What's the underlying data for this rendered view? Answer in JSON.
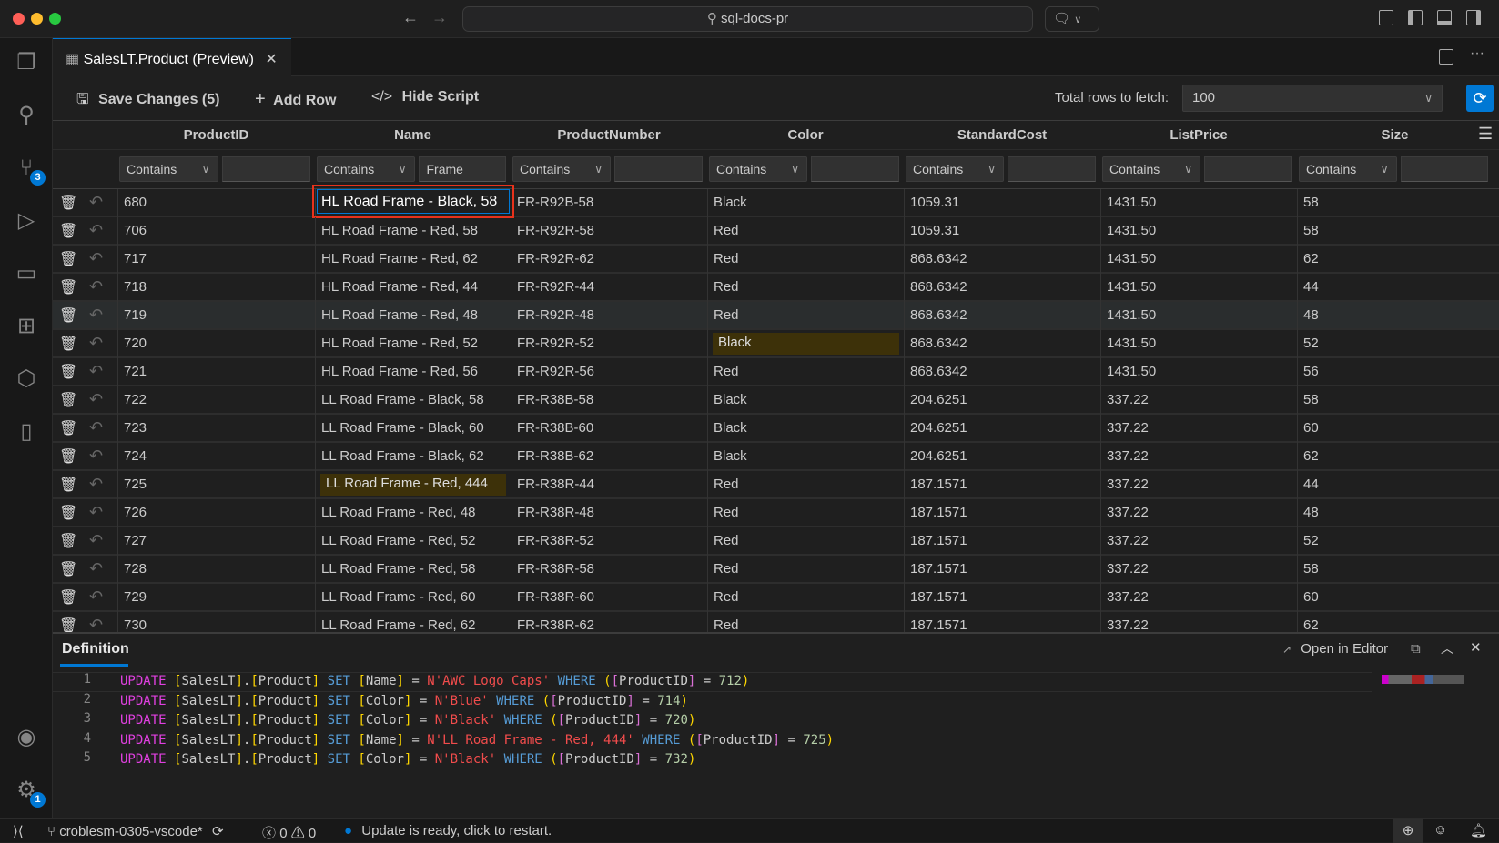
{
  "window": {
    "search_text": "sql-docs-pr"
  },
  "activity_bar": {
    "source_control_badge": "3",
    "settings_badge": "1"
  },
  "tab": {
    "label": "SalesLT.Product (Preview)"
  },
  "toolbar": {
    "save_label": "Save Changes (5)",
    "add_row_label": "Add Row",
    "hide_script_label": "Hide Script",
    "rows_label": "Total rows to fetch:",
    "rows_value": "100"
  },
  "columns": [
    "ProductID",
    "Name",
    "ProductNumber",
    "Color",
    "StandardCost",
    "ListPrice",
    "Size"
  ],
  "filters": [
    {
      "op": "Contains",
      "value": ""
    },
    {
      "op": "Contains",
      "value": "Frame"
    },
    {
      "op": "Contains",
      "value": ""
    },
    {
      "op": "Contains",
      "value": ""
    },
    {
      "op": "Contains",
      "value": ""
    },
    {
      "op": "Contains",
      "value": ""
    },
    {
      "op": "Contains",
      "value": ""
    }
  ],
  "rows": [
    [
      "680",
      "HL Road Frame - Black, 58",
      "FR-R92B-58",
      "Black",
      "1059.31",
      "1431.50",
      "58"
    ],
    [
      "706",
      "HL Road Frame - Red, 58",
      "FR-R92R-58",
      "Red",
      "1059.31",
      "1431.50",
      "58"
    ],
    [
      "717",
      "HL Road Frame - Red, 62",
      "FR-R92R-62",
      "Red",
      "868.6342",
      "1431.50",
      "62"
    ],
    [
      "718",
      "HL Road Frame - Red, 44",
      "FR-R92R-44",
      "Red",
      "868.6342",
      "1431.50",
      "44"
    ],
    [
      "719",
      "HL Road Frame - Red, 48",
      "FR-R92R-48",
      "Red",
      "868.6342",
      "1431.50",
      "48"
    ],
    [
      "720",
      "HL Road Frame - Red, 52",
      "FR-R92R-52",
      "Black",
      "868.6342",
      "1431.50",
      "52"
    ],
    [
      "721",
      "HL Road Frame - Red, 56",
      "FR-R92R-56",
      "Red",
      "868.6342",
      "1431.50",
      "56"
    ],
    [
      "722",
      "LL Road Frame - Black, 58",
      "FR-R38B-58",
      "Black",
      "204.6251",
      "337.22",
      "58"
    ],
    [
      "723",
      "LL Road Frame - Black, 60",
      "FR-R38B-60",
      "Black",
      "204.6251",
      "337.22",
      "60"
    ],
    [
      "724",
      "LL Road Frame - Black, 62",
      "FR-R38B-62",
      "Black",
      "204.6251",
      "337.22",
      "62"
    ],
    [
      "725",
      "LL Road Frame - Red, 444",
      "FR-R38R-44",
      "Red",
      "187.1571",
      "337.22",
      "44"
    ],
    [
      "726",
      "LL Road Frame - Red, 48",
      "FR-R38R-48",
      "Red",
      "187.1571",
      "337.22",
      "48"
    ],
    [
      "727",
      "LL Road Frame - Red, 52",
      "FR-R38R-52",
      "Red",
      "187.1571",
      "337.22",
      "52"
    ],
    [
      "728",
      "LL Road Frame - Red, 58",
      "FR-R38R-58",
      "Red",
      "187.1571",
      "337.22",
      "58"
    ],
    [
      "729",
      "LL Road Frame - Red, 60",
      "FR-R38R-60",
      "Red",
      "187.1571",
      "337.22",
      "60"
    ],
    [
      "730",
      "LL Road Frame - Red, 62",
      "FR-R38R-62",
      "Red",
      "187.1571",
      "337.22",
      "62"
    ]
  ],
  "editing_cell": {
    "row": 0,
    "col": 1
  },
  "modified_cells": [
    {
      "row": 5,
      "col": 3
    },
    {
      "row": 10,
      "col": 1
    }
  ],
  "hovered_row": 4,
  "definition": {
    "title": "Definition",
    "open_in_editor": "Open in Editor",
    "lines": [
      {
        "n": "1",
        "col": "Name",
        "val": "N'AWC Logo Caps'",
        "id": "712"
      },
      {
        "n": "2",
        "col": "Color",
        "val": "N'Blue'",
        "id": "714"
      },
      {
        "n": "3",
        "col": "Color",
        "val": "N'Black'",
        "id": "720"
      },
      {
        "n": "4",
        "col": "Name",
        "val": "N'LL Road Frame - Red, 444'",
        "id": "725"
      },
      {
        "n": "5",
        "col": "Color",
        "val": "N'Black'",
        "id": "732"
      }
    ]
  },
  "status": {
    "branch": "croblesm-0305-vscode*",
    "errors": "0",
    "warnings": "0",
    "update_msg": "Update is ready, click to restart."
  },
  "colors": {
    "accent": "#0078d4",
    "modified_cell": "#3d3109",
    "edit_border": "#e8321b"
  }
}
